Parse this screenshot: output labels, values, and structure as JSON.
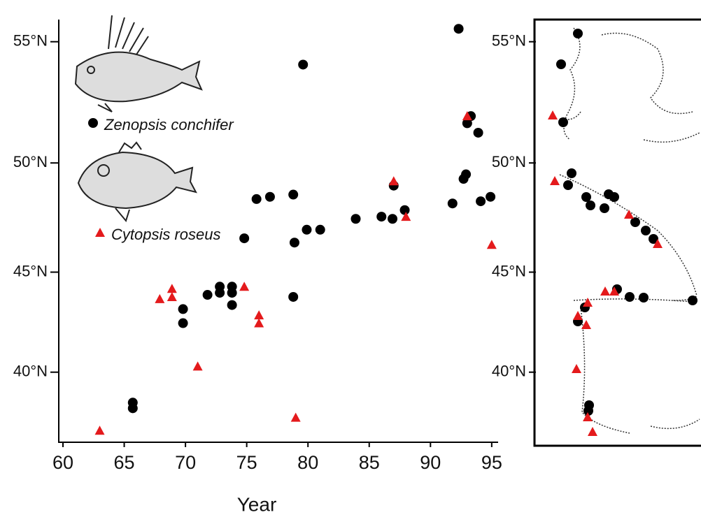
{
  "chart_data": {
    "type": "scatter",
    "xlabel": "Year",
    "xlim": [
      60,
      96
    ],
    "xticks": [
      60,
      65,
      70,
      75,
      80,
      85,
      90,
      95
    ],
    "ylim": [
      36.3,
      55.8
    ],
    "yticks": [
      {
        "value": 40,
        "label": "40°N"
      },
      {
        "value": 45,
        "label": "45°N"
      },
      {
        "value": 50,
        "label": "50°N"
      },
      {
        "value": 55,
        "label": "55°N"
      }
    ],
    "series": [
      {
        "name": "Zenopsis conchifer",
        "color": "#000000",
        "marker": "circle",
        "x": [
          92.3,
          79.6,
          93.3,
          93.0,
          93.9,
          92.9,
          92.7,
          87.0,
          78.8,
          76.9,
          75.8,
          94.9,
          94.1,
          91.8,
          87.9,
          83.9,
          86.0,
          86.9,
          79.9,
          81.0,
          74.8,
          78.9,
          73.8,
          72.8,
          72.8,
          73.8,
          71.8,
          73.8,
          78.8,
          69.8,
          69.8,
          65.7,
          65.7
        ],
        "values": [
          55.5,
          54.1,
          52.0,
          51.7,
          51.3,
          49.5,
          49.3,
          49.0,
          48.6,
          48.5,
          48.4,
          48.5,
          48.3,
          48.2,
          47.9,
          47.5,
          47.6,
          47.5,
          47.0,
          47.0,
          46.6,
          46.4,
          44.3,
          44.3,
          44.0,
          44.0,
          43.9,
          43.4,
          43.8,
          43.2,
          42.5,
          38.4,
          38.1
        ]
      },
      {
        "name": "Cytopsis roseus",
        "color": "#e41a1c",
        "marker": "triangle",
        "x": [
          87.0,
          93.0,
          88.0,
          95.0,
          74.8,
          68.9,
          68.9,
          67.9,
          76.0,
          76.0,
          71.0,
          79.0,
          63.0
        ],
        "values": [
          49.2,
          52.0,
          47.6,
          46.3,
          44.3,
          44.2,
          43.8,
          43.7,
          42.9,
          42.5,
          40.3,
          37.6,
          36.9
        ]
      }
    ]
  }
}
